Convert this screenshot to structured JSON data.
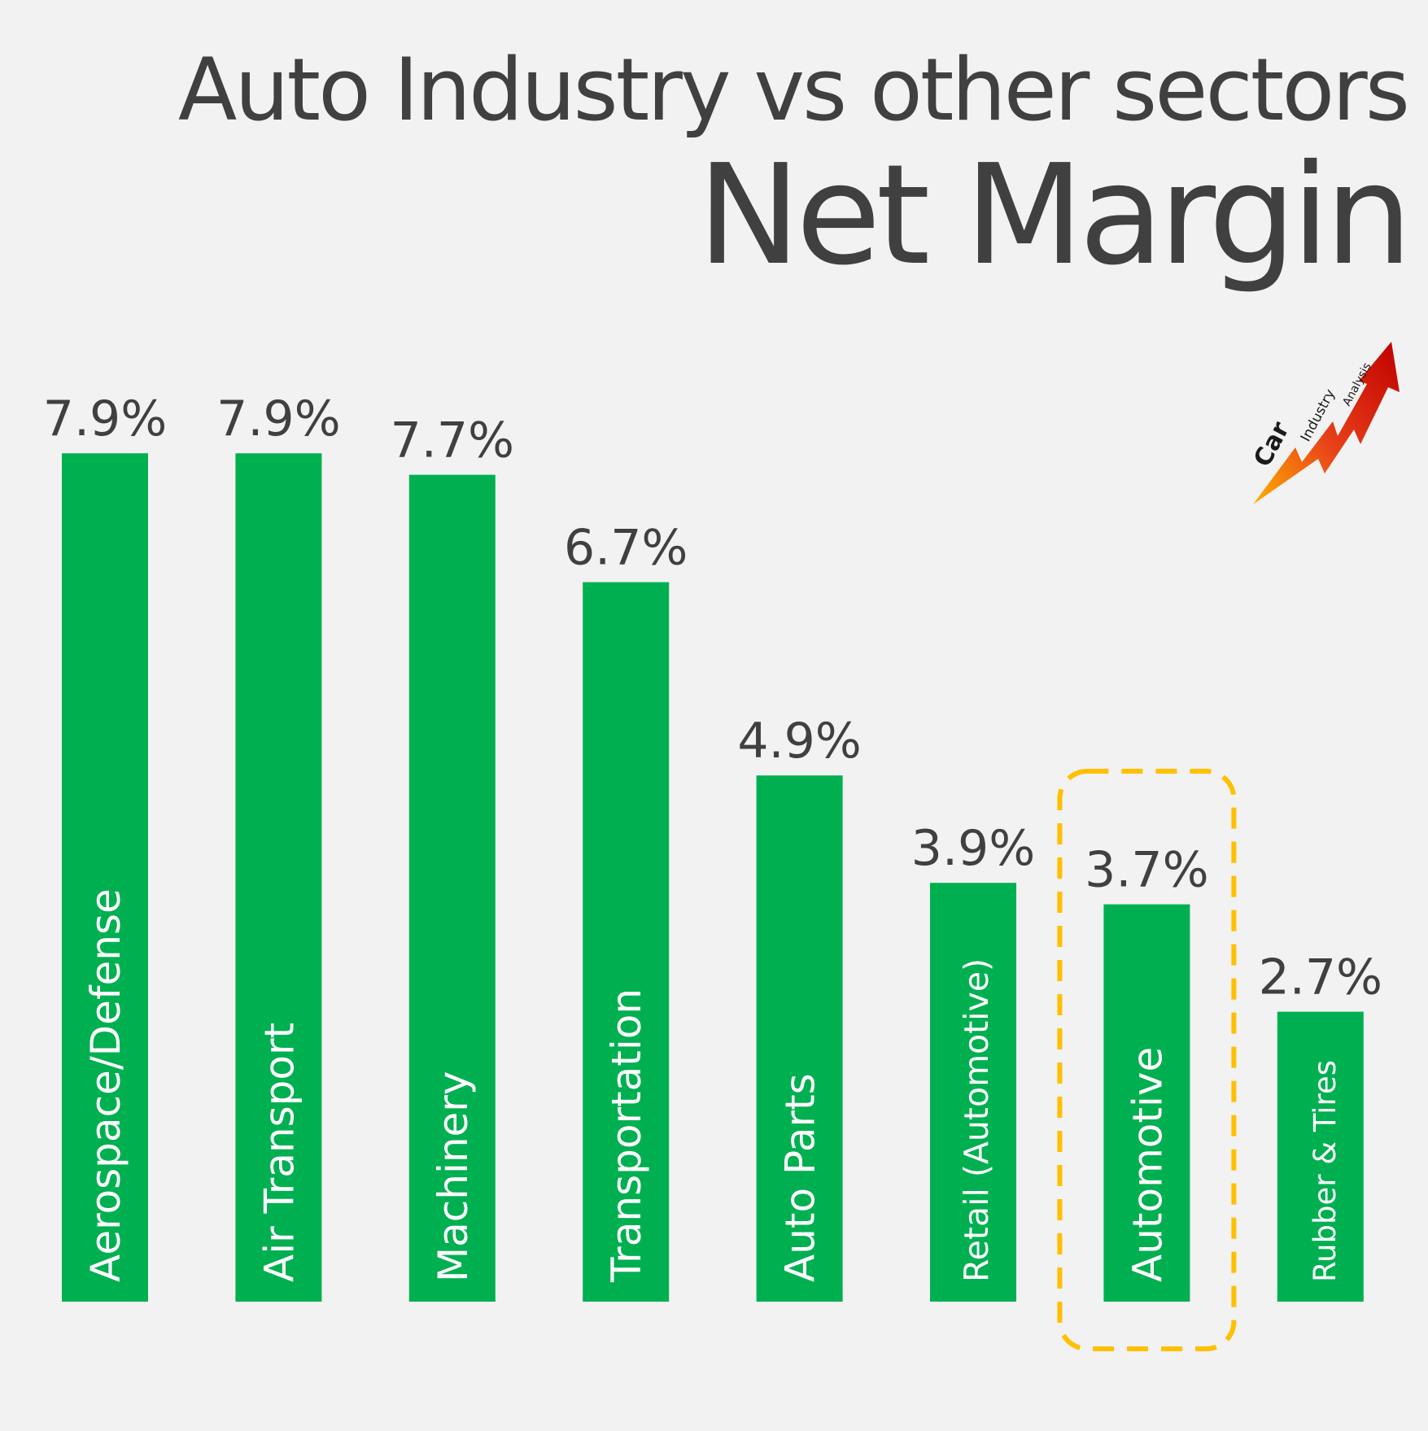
{
  "header": {
    "title": "Auto Industry vs other sectors",
    "subtitle": "Net Margin"
  },
  "logo": {
    "word1": "Car",
    "word2": "Industry",
    "word3": "Analysis",
    "colors": [
      "#ffb000",
      "#e8401a",
      "#c00000"
    ]
  },
  "colors": {
    "bar": "#00b050",
    "highlight": "#ffc000",
    "text": "#404040",
    "background": "#f2f2f2"
  },
  "chart_data": {
    "type": "bar",
    "title": "Net Margin",
    "categories": [
      "Aerospace/Defense",
      "Air Transport",
      "Machinery",
      "Transportation",
      "Auto Parts",
      "Retail (Automotive)",
      "Automotive",
      "Rubber & Tires"
    ],
    "values": [
      7.9,
      7.9,
      7.7,
      6.7,
      4.9,
      3.9,
      3.7,
      2.7
    ],
    "data_labels": [
      "7.9%",
      "7.9%",
      "7.7%",
      "6.7%",
      "4.9%",
      "3.9%",
      "3.7%",
      "2.7%"
    ],
    "highlighted_category": "Automotive",
    "xlabel": "",
    "ylabel": "",
    "grid": false,
    "legend": "none"
  }
}
